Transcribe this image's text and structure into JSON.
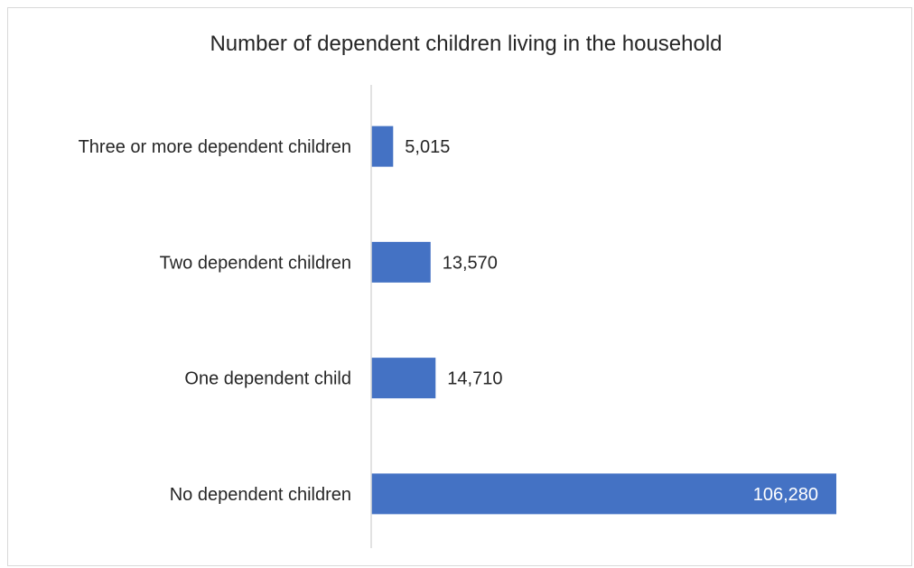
{
  "chart_data": {
    "type": "bar",
    "orientation": "horizontal",
    "title": "Number of dependent children living in the household",
    "categories": [
      "Three or more dependent children",
      "Two dependent children",
      "One dependent child",
      "No dependent children"
    ],
    "values": [
      5015,
      13570,
      14710,
      106280
    ],
    "value_labels": [
      "5,015",
      "13,570",
      "14,710",
      "106,280"
    ],
    "bar_color": "#4472c4",
    "xlim": [
      0,
      106280
    ],
    "grid": false,
    "legend": "none"
  }
}
